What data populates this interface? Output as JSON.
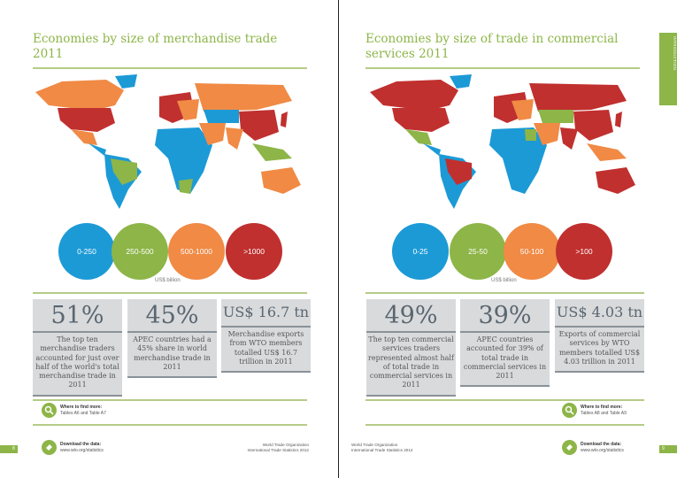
{
  "colors": {
    "green": "#8db548",
    "blue": "#1c9ad6",
    "orange": "#f08a45",
    "red": "#c0302f"
  },
  "left": {
    "title": "Economies by size of merchandise trade 2011",
    "legend": [
      {
        "label": "0-250",
        "color": "#1c9ad6"
      },
      {
        "label": "250-500",
        "color": "#8db548"
      },
      {
        "label": "500-1000",
        "color": "#f08a45"
      },
      {
        "label": ">1000",
        "color": "#c0302f"
      }
    ],
    "unit": "US$ billion",
    "stats": [
      {
        "big": "51%",
        "text": "The top ten merchandise traders accounted for just over half of the world's total merchandise trade in 2011"
      },
      {
        "big": "45%",
        "text": "APEC countries had a 45% share in world merchandise trade in 2011"
      },
      {
        "big": "US$ 16.7 tn",
        "text": "Merchandise exports from WTO members totalled US$ 16.7 trillion in 2011"
      }
    ],
    "find_title": "Where to find more:",
    "find_text": "Tables A6 and Table A7",
    "download_title": "Download the data:",
    "download_url": "www.wto.org/statistics",
    "footer_1": "World Trade Organization",
    "footer_2": "International Trade Statistics 2012",
    "page_number": "8"
  },
  "right": {
    "title": "Economies by size of trade in commercial services 2011",
    "legend": [
      {
        "label": "0-25",
        "color": "#1c9ad6"
      },
      {
        "label": "25-50",
        "color": "#8db548"
      },
      {
        "label": "50-100",
        "color": "#f08a45"
      },
      {
        "label": ">100",
        "color": "#c0302f"
      }
    ],
    "unit": "US$ billion",
    "stats": [
      {
        "big": "49%",
        "text": "The top ten commercial services traders represented almost half of total trade in commercial services in 2011"
      },
      {
        "big": "39%",
        "text": "APEC countries accounted for 39% of total trade in commercial services in 2011"
      },
      {
        "big": "US$ 4.03 tn",
        "text": "Exports of commercial services by WTO members totalled US$ 4.03 trillion in 2011"
      }
    ],
    "find_title": "Where to find more:",
    "find_text": "Tables A8 and Table A9",
    "download_title": "Download the data:",
    "download_url": "www.wto.org/statistics",
    "footer_1": "World Trade Organization",
    "footer_2": "International Trade Statistics 2012",
    "page_number": "9",
    "section_tab": "INTRODUCTION"
  }
}
